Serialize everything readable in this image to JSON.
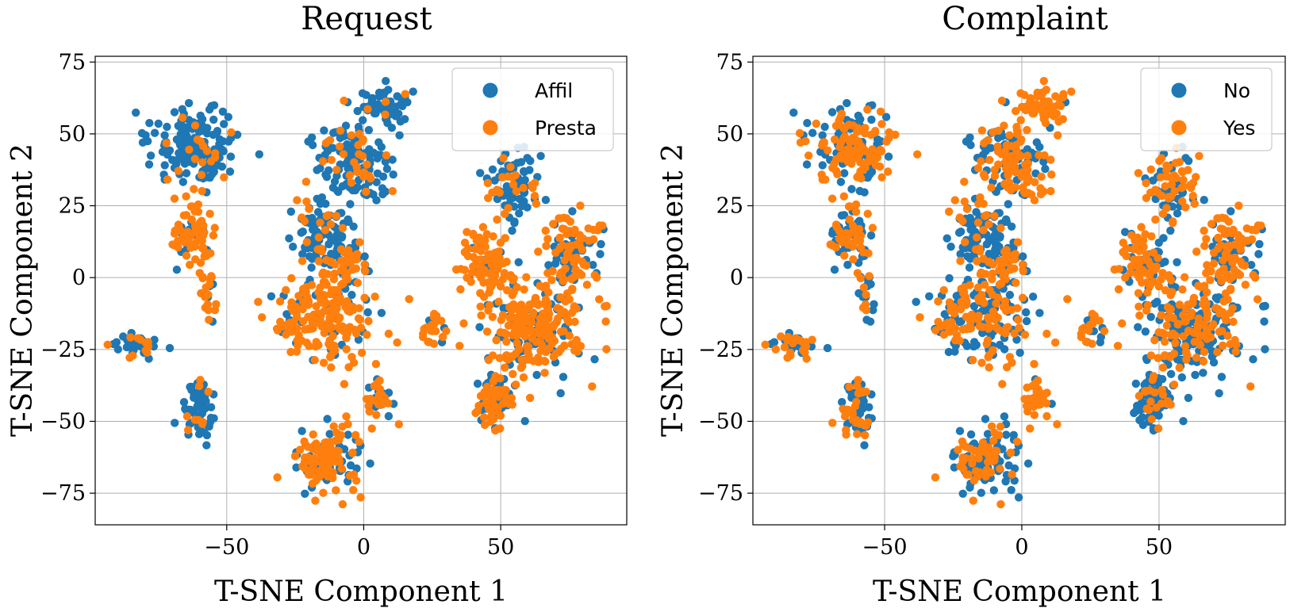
{
  "chart_data": [
    {
      "type": "scatter",
      "title": "Request",
      "xlabel": "T-SNE Component 1",
      "ylabel": "T-SNE Component 2",
      "xlim": [
        -98,
        96
      ],
      "ylim": [
        -86,
        77
      ],
      "xticks": [
        -50,
        0,
        50
      ],
      "yticks": [
        -75,
        -50,
        -25,
        0,
        25,
        50,
        75
      ],
      "xtick_labels": [
        "−50",
        "0",
        "50"
      ],
      "ytick_labels": [
        "−75",
        "−50",
        "−25",
        "0",
        "25",
        "50",
        "75"
      ],
      "grid": true,
      "legend_position": "top-right",
      "clusters": [
        {
          "cx": -61,
          "cy": 46,
          "rx": 15,
          "ry": 11,
          "n": 170,
          "mix": 0.12
        },
        {
          "cx": -62,
          "cy": 15,
          "rx": 7,
          "ry": 11,
          "n": 80,
          "mix": 0.85
        },
        {
          "cx": -57,
          "cy": -5,
          "rx": 3,
          "ry": 8,
          "n": 20,
          "mix": 0.6
        },
        {
          "cx": -82,
          "cy": -23,
          "rx": 8,
          "ry": 4,
          "n": 45,
          "mix": 0.3
        },
        {
          "cx": -60,
          "cy": -46,
          "rx": 5,
          "ry": 10,
          "n": 60,
          "mix": 0.15
        },
        {
          "cx": -4,
          "cy": 40,
          "rx": 13,
          "ry": 14,
          "n": 150,
          "mix": 0.22
        },
        {
          "cx": 8,
          "cy": 60,
          "rx": 9,
          "ry": 6,
          "n": 60,
          "mix": 0.05
        },
        {
          "cx": -14,
          "cy": 15,
          "rx": 10,
          "ry": 10,
          "n": 90,
          "mix": 0.3
        },
        {
          "cx": -14,
          "cy": -14,
          "rx": 16,
          "ry": 15,
          "n": 200,
          "mix": 0.8
        },
        {
          "cx": -6,
          "cy": 5,
          "rx": 8,
          "ry": 8,
          "n": 60,
          "mix": 0.65
        },
        {
          "cx": -13,
          "cy": -63,
          "rx": 11,
          "ry": 12,
          "n": 130,
          "mix": 0.7
        },
        {
          "cx": 6,
          "cy": -42,
          "rx": 6,
          "ry": 8,
          "n": 40,
          "mix": 0.5
        },
        {
          "cx": 25,
          "cy": -18,
          "rx": 4,
          "ry": 6,
          "n": 25,
          "mix": 0.8
        },
        {
          "cx": 54,
          "cy": 30,
          "rx": 8,
          "ry": 12,
          "n": 80,
          "mix": 0.3
        },
        {
          "cx": 45,
          "cy": 5,
          "rx": 8,
          "ry": 12,
          "n": 90,
          "mix": 0.8
        },
        {
          "cx": 77,
          "cy": 10,
          "rx": 9,
          "ry": 13,
          "n": 110,
          "mix": 0.55
        },
        {
          "cx": 62,
          "cy": -17,
          "rx": 17,
          "ry": 15,
          "n": 250,
          "mix": 0.75
        },
        {
          "cx": 48,
          "cy": -43,
          "rx": 8,
          "ry": 8,
          "n": 80,
          "mix": 0.75
        }
      ],
      "series": [
        {
          "name": "Affil",
          "color": "#1f77b4"
        },
        {
          "name": "Presta",
          "color": "#ff7f0e"
        }
      ]
    },
    {
      "type": "scatter",
      "title": "Complaint",
      "xlabel": "T-SNE Component 1",
      "ylabel": "T-SNE Component 2",
      "xlim": [
        -98,
        96
      ],
      "ylim": [
        -86,
        77
      ],
      "xticks": [
        -50,
        0,
        50
      ],
      "yticks": [
        -75,
        -50,
        -25,
        0,
        25,
        50,
        75
      ],
      "xtick_labels": [
        "−50",
        "0",
        "50"
      ],
      "ytick_labels": [
        "−75",
        "−50",
        "−25",
        "0",
        "25",
        "50",
        "75"
      ],
      "grid": true,
      "legend_position": "top-right",
      "clusters": [
        {
          "cx": -61,
          "cy": 46,
          "rx": 15,
          "ry": 11,
          "n": 170,
          "mix": 0.55
        },
        {
          "cx": -62,
          "cy": 15,
          "rx": 7,
          "ry": 11,
          "n": 80,
          "mix": 0.45
        },
        {
          "cx": -57,
          "cy": -5,
          "rx": 3,
          "ry": 8,
          "n": 20,
          "mix": 0.3
        },
        {
          "cx": -82,
          "cy": -23,
          "rx": 8,
          "ry": 4,
          "n": 45,
          "mix": 0.6
        },
        {
          "cx": -60,
          "cy": -46,
          "rx": 5,
          "ry": 10,
          "n": 60,
          "mix": 0.6
        },
        {
          "cx": -4,
          "cy": 40,
          "rx": 13,
          "ry": 14,
          "n": 150,
          "mix": 0.55
        },
        {
          "cx": 8,
          "cy": 60,
          "rx": 9,
          "ry": 6,
          "n": 60,
          "mix": 0.9
        },
        {
          "cx": -14,
          "cy": 15,
          "rx": 10,
          "ry": 10,
          "n": 90,
          "mix": 0.35
        },
        {
          "cx": -14,
          "cy": -14,
          "rx": 16,
          "ry": 15,
          "n": 200,
          "mix": 0.45
        },
        {
          "cx": -6,
          "cy": 5,
          "rx": 8,
          "ry": 8,
          "n": 60,
          "mix": 0.5
        },
        {
          "cx": -13,
          "cy": -63,
          "rx": 11,
          "ry": 12,
          "n": 130,
          "mix": 0.4
        },
        {
          "cx": 6,
          "cy": -42,
          "rx": 6,
          "ry": 8,
          "n": 40,
          "mix": 0.8
        },
        {
          "cx": 25,
          "cy": -18,
          "rx": 4,
          "ry": 6,
          "n": 25,
          "mix": 0.5
        },
        {
          "cx": 54,
          "cy": 30,
          "rx": 8,
          "ry": 12,
          "n": 80,
          "mix": 0.6
        },
        {
          "cx": 45,
          "cy": 5,
          "rx": 8,
          "ry": 12,
          "n": 90,
          "mix": 0.6
        },
        {
          "cx": 77,
          "cy": 10,
          "rx": 9,
          "ry": 13,
          "n": 110,
          "mix": 0.6
        },
        {
          "cx": 62,
          "cy": -17,
          "rx": 17,
          "ry": 15,
          "n": 250,
          "mix": 0.45
        },
        {
          "cx": 48,
          "cy": -43,
          "rx": 8,
          "ry": 8,
          "n": 80,
          "mix": 0.3
        }
      ],
      "series": [
        {
          "name": "No",
          "color": "#1f77b4"
        },
        {
          "name": "Yes",
          "color": "#ff7f0e"
        }
      ]
    }
  ]
}
